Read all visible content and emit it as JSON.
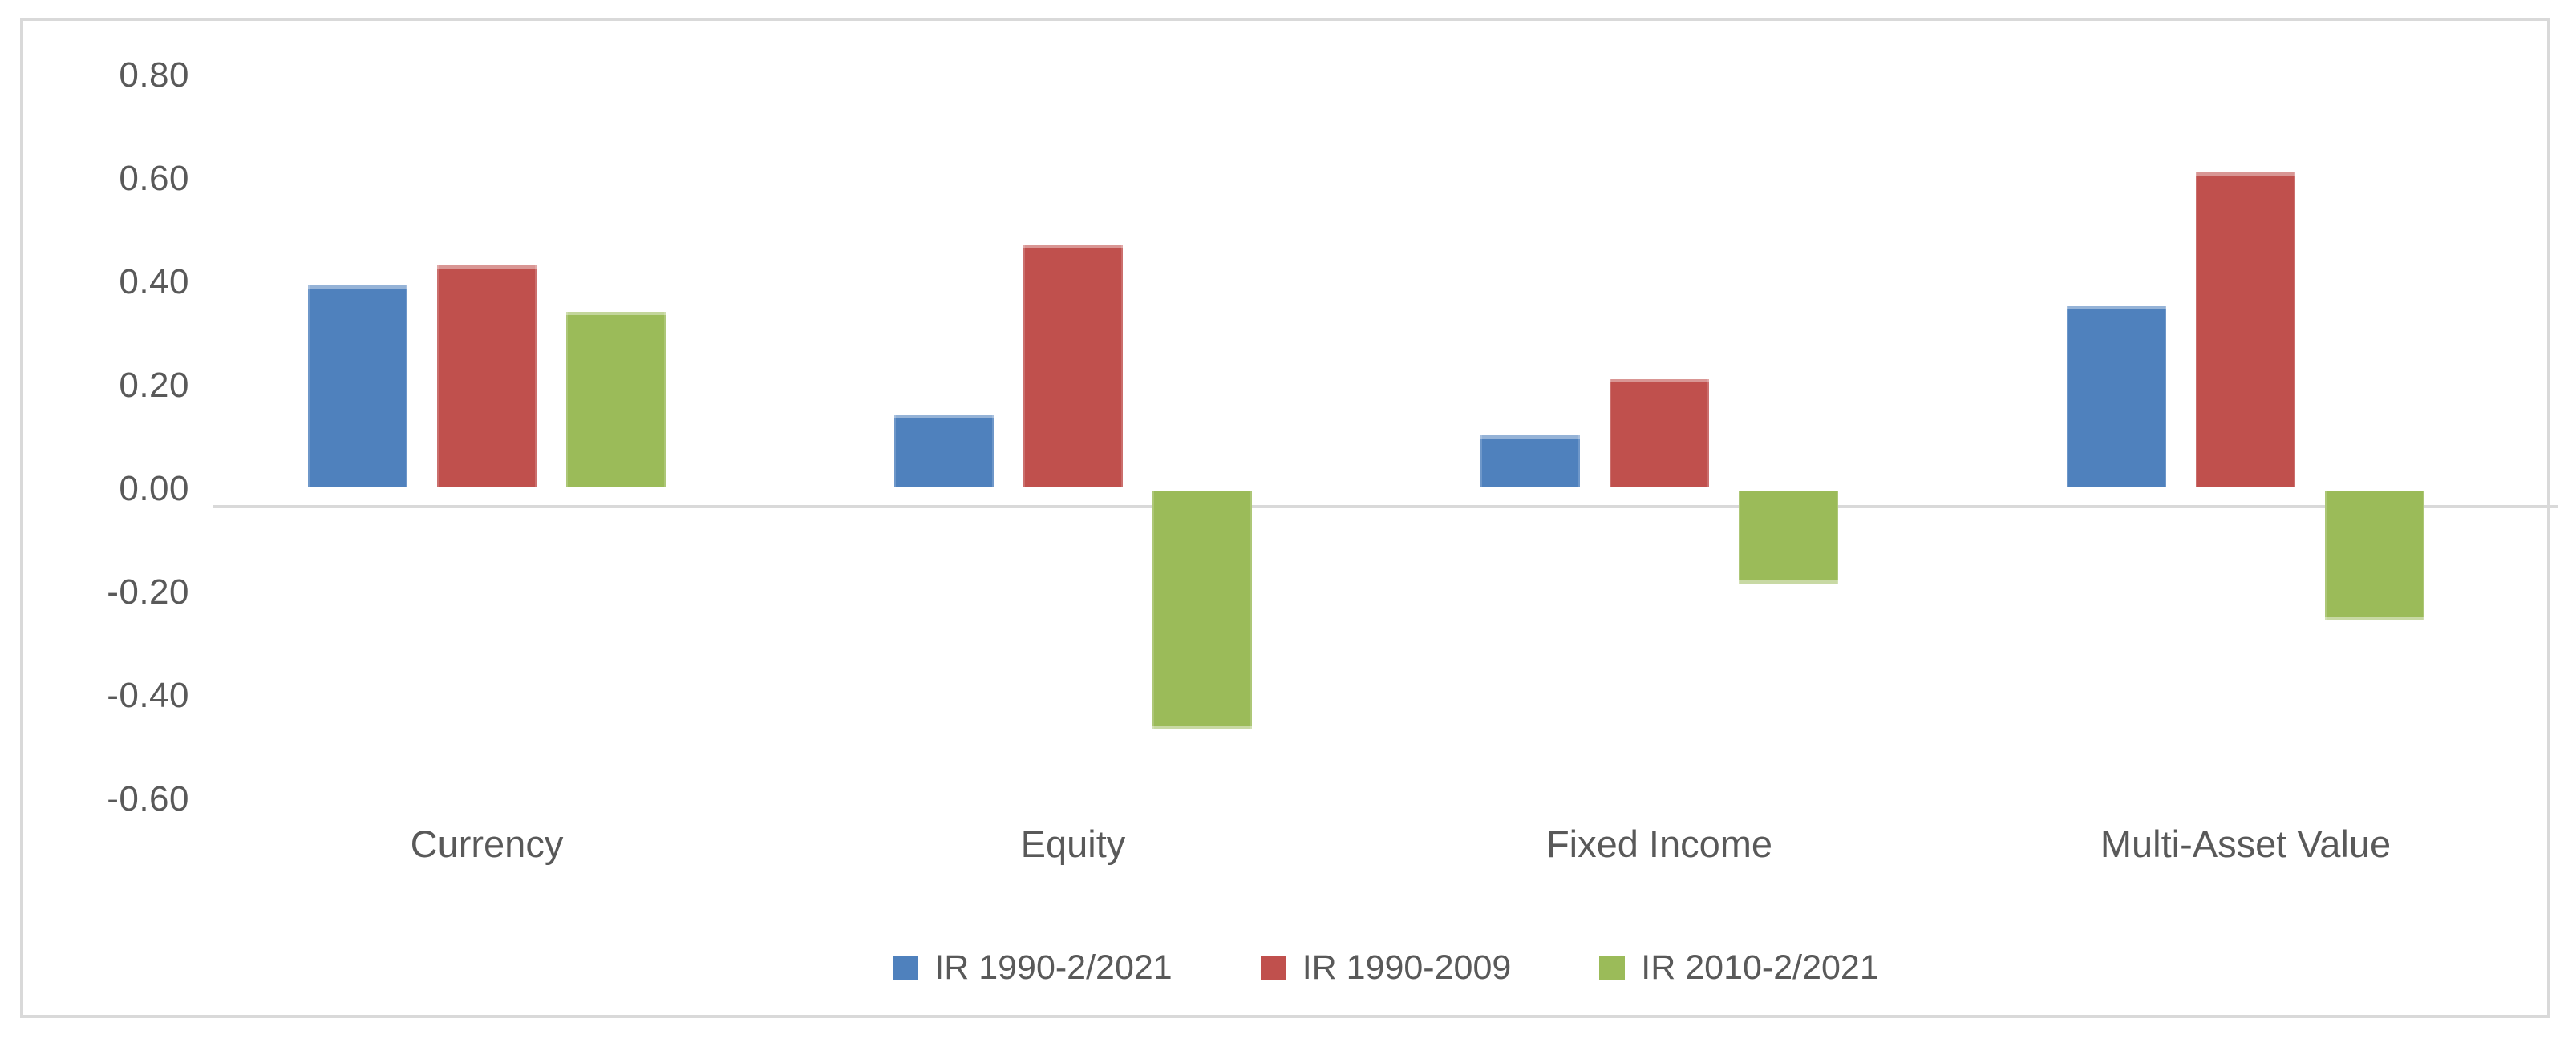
{
  "window": {
    "background": "#ffffff",
    "frame_border_color": "#d9d9d9"
  },
  "chart_data": {
    "type": "bar",
    "title": "",
    "categories": [
      "Currency",
      "Equity",
      "Fixed Income",
      "Multi-Asset Value"
    ],
    "series": [
      {
        "name": "IR 1990-2/2021",
        "color": "#4F81BD",
        "values": [
          0.39,
          0.14,
          0.1,
          0.35
        ]
      },
      {
        "name": "IR 1990-2009",
        "color": "#C0504D",
        "values": [
          0.43,
          0.47,
          0.21,
          0.61
        ]
      },
      {
        "name": "IR 2010-2/2021",
        "color": "#9BBB59",
        "values": [
          0.34,
          -0.46,
          -0.18,
          -0.25
        ]
      }
    ],
    "y_axis": {
      "ticks": [
        {
          "label": "0.80",
          "value": 0.8
        },
        {
          "label": "0.60",
          "value": 0.6
        },
        {
          "label": "0.40",
          "value": 0.4
        },
        {
          "label": "0.20",
          "value": 0.2
        },
        {
          "label": "0.00",
          "value": 0.0
        },
        {
          "label": "-0.20",
          "value": -0.2
        },
        {
          "label": "-0.40",
          "value": -0.4
        },
        {
          "label": "-0.60",
          "value": -0.6
        }
      ],
      "range": [
        -0.72,
        0.88
      ]
    },
    "grid": false,
    "legend_position": "bottom",
    "colors": {
      "axis_line": "#D9D9D9",
      "text": "#595959"
    }
  }
}
